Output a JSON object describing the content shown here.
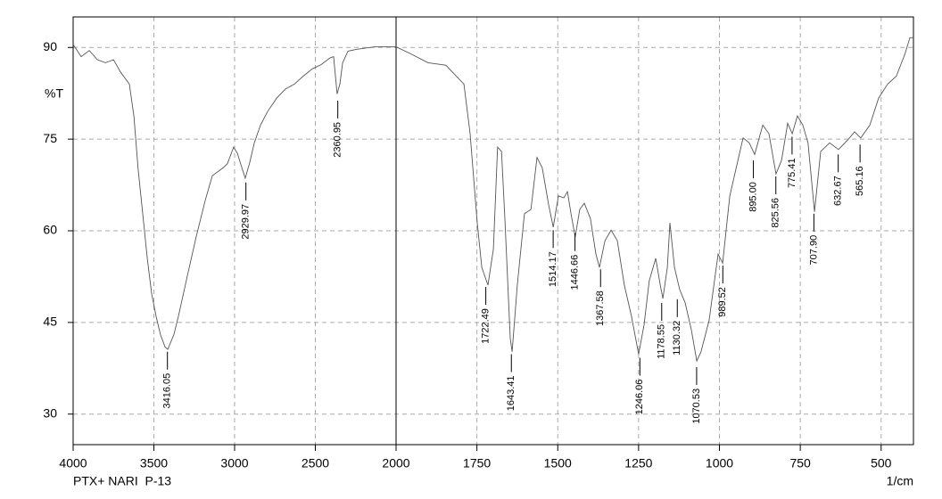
{
  "chart_data": {
    "type": "line",
    "y_label": "%T",
    "x_label": "1/cm",
    "caption": "PTX+ NARI  P-13",
    "color": "#555555",
    "grid": true,
    "x_scale_break": 2000,
    "xlim": [
      4000,
      400
    ],
    "xticks": [
      4000,
      3500,
      3000,
      2500,
      2000,
      1750,
      1500,
      1250,
      1000,
      750,
      500
    ],
    "ylim": [
      25,
      95
    ],
    "yticks": [
      30,
      45,
      60,
      75,
      90
    ],
    "x": [
      4000,
      3950,
      3900,
      3850,
      3800,
      3750,
      3707,
      3652,
      3624,
      3597,
      3569,
      3541,
      3514,
      3486,
      3459,
      3431,
      3414,
      3376,
      3348,
      3293,
      3238,
      3182,
      3138,
      3072,
      3044,
      3006,
      2983,
      2961,
      2934,
      2906,
      2878,
      2840,
      2796,
      2740,
      2685,
      2630,
      2575,
      2519,
      2464,
      2409,
      2387,
      2365,
      2348,
      2331,
      2298,
      2243,
      2133,
      2000,
      1956,
      1901,
      1846,
      1790,
      1771,
      1749,
      1735,
      1716,
      1699,
      1686,
      1674,
      1663,
      1647,
      1641,
      1625,
      1603,
      1583,
      1564,
      1548,
      1528,
      1514,
      1498,
      1481,
      1470,
      1459,
      1446,
      1432,
      1418,
      1399,
      1382,
      1371,
      1354,
      1335,
      1316,
      1294,
      1272,
      1250,
      1233,
      1217,
      1197,
      1183,
      1175,
      1161,
      1153,
      1139,
      1123,
      1106,
      1087,
      1070,
      1057,
      1032,
      1004,
      990,
      968,
      946,
      927,
      908,
      891,
      866,
      847,
      825,
      808,
      789,
      775,
      759,
      742,
      726,
      706,
      687,
      659,
      632,
      604,
      582,
      563,
      535,
      508,
      480,
      453,
      426,
      411,
      400
    ],
    "values": [
      90.5,
      88.5,
      89.5,
      88,
      87.5,
      88,
      86,
      84,
      78.8,
      70,
      62.8,
      55.5,
      49.7,
      46,
      43,
      41,
      40.6,
      43,
      46,
      52.6,
      59,
      65,
      69,
      70.3,
      71,
      73.7,
      72.7,
      70.8,
      68.6,
      71.2,
      74.4,
      77.3,
      79.5,
      81.7,
      83.2,
      84,
      85.3,
      86.5,
      87.2,
      88.3,
      88.5,
      82.4,
      84,
      87.5,
      89.4,
      89.7,
      90.1,
      90.1,
      89,
      87.5,
      87.1,
      84,
      75.9,
      61.3,
      54,
      51.1,
      57,
      73.7,
      73,
      61.3,
      42.4,
      40.2,
      51.1,
      62.8,
      63.5,
      72,
      70.3,
      64.2,
      60.6,
      65.7,
      65.4,
      66.4,
      62.8,
      59,
      63.5,
      64.5,
      62,
      56.2,
      54,
      58.4,
      60.1,
      58.4,
      51.1,
      46,
      39.8,
      44.6,
      51.8,
      55.5,
      51.1,
      48.9,
      54,
      61.3,
      54,
      50.4,
      48.2,
      43.8,
      38.7,
      40.2,
      45.3,
      56.2,
      54.7,
      65.7,
      70.8,
      75.2,
      74.4,
      72.5,
      77.3,
      75.9,
      69.3,
      71.5,
      77.6,
      75.9,
      78.8,
      77.3,
      74.4,
      63.1,
      73,
      74.4,
      73.3,
      74.8,
      76.2,
      75.2,
      77.3,
      81.7,
      84,
      85.3,
      89,
      91.6,
      91.6
    ],
    "peaks": [
      {
        "text": "3416.05",
        "x": 3416.05,
        "y": 40.2
      },
      {
        "text": "2929.97",
        "x": 2929.97,
        "y": 67.9
      },
      {
        "text": "2360.95",
        "x": 2360.95,
        "y": 81.3
      },
      {
        "text": "1722.49",
        "x": 1722.49,
        "y": 50.8
      },
      {
        "text": "1643.41",
        "x": 1643.41,
        "y": 39.8
      },
      {
        "text": "1514.17",
        "x": 1514.17,
        "y": 60.1
      },
      {
        "text": "1446.66",
        "x": 1446.66,
        "y": 59.6
      },
      {
        "text": "1367.58",
        "x": 1367.58,
        "y": 53.7
      },
      {
        "text": "1246.06",
        "x": 1246.06,
        "y": 39.2
      },
      {
        "text": "1178.55",
        "x": 1178.55,
        "y": 48.2
      },
      {
        "text": "1130.32",
        "x": 1130.32,
        "y": 48.8
      },
      {
        "text": "1070.53",
        "x": 1070.53,
        "y": 37.7
      },
      {
        "text": "989.52",
        "x": 989.52,
        "y": 54.3
      },
      {
        "text": "895.00",
        "x": 895,
        "y": 71.5
      },
      {
        "text": "825.56",
        "x": 825.56,
        "y": 68.9
      },
      {
        "text": "775.41",
        "x": 775.41,
        "y": 75.4
      },
      {
        "text": "707.90",
        "x": 707.9,
        "y": 62.8
      },
      {
        "text": "632.67",
        "x": 632.67,
        "y": 72.5
      },
      {
        "text": "565.16",
        "x": 565.16,
        "y": 74.1
      }
    ]
  }
}
